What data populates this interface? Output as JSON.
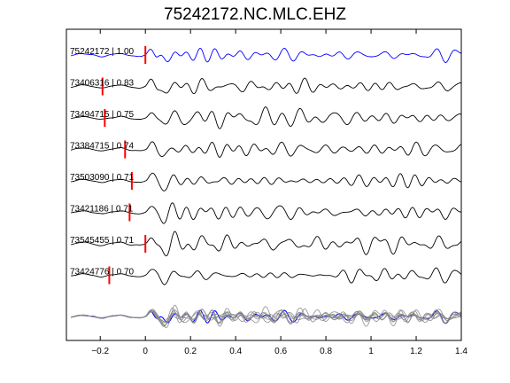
{
  "chart_data": {
    "type": "line",
    "title": "75242172.NC.MLC.EHZ",
    "xlabel": "",
    "ylabel": "",
    "xlim": [
      -0.35,
      1.4
    ],
    "xticks": [
      -0.2,
      0,
      0.2,
      0.4,
      0.6,
      0.8,
      1,
      1.2,
      1.4
    ],
    "xtick_labels": [
      "−0.2",
      "0",
      "0.2",
      "0.4",
      "0.6",
      "0.8",
      "1",
      "1.2",
      "1.4"
    ],
    "grid": false,
    "legend": "none",
    "colors": {
      "reference_trace": "#0000ff",
      "trace": "#000000",
      "stack_trace": "#888888",
      "pick_marker": "#ff0000",
      "axes": "#000000"
    },
    "series": [
      {
        "name": "75242172 | 1.00",
        "pick": 0.0,
        "reference": true
      },
      {
        "name": "73406316 | 0.83",
        "pick": -0.19
      },
      {
        "name": "73494715 | 0.75",
        "pick": -0.18
      },
      {
        "name": "73384715 | 0.74",
        "pick": -0.09
      },
      {
        "name": "73503090 | 0.71",
        "pick": -0.06
      },
      {
        "name": "73421186 | 0.71",
        "pick": -0.07
      },
      {
        "name": "73545455 | 0.71",
        "pick": 0.0
      },
      {
        "name": "73424776 | 0.70",
        "pick": -0.16
      }
    ]
  }
}
